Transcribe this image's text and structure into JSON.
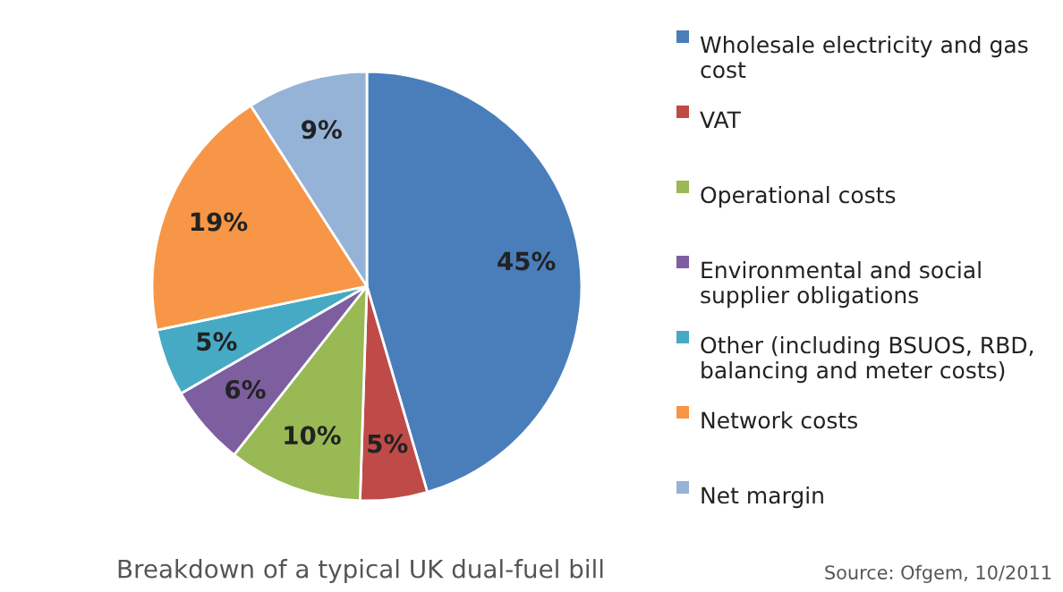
{
  "chart_data": {
    "type": "pie",
    "title": "Breakdown of a typical UK dual-fuel bill",
    "categories": [
      "Wholesale electricity and gas cost",
      "VAT",
      "Operational costs",
      "Environmental and social supplier obligations",
      "Other (including BSUOS, RBD, balancing and meter costs)",
      "Network costs",
      "Net margin"
    ],
    "values": [
      45,
      5,
      10,
      6,
      5,
      19,
      9
    ],
    "colors": [
      "#4a7ebb",
      "#be4b48",
      "#98b954",
      "#7d5fa0",
      "#46aac5",
      "#f79646",
      "#95b3d7"
    ],
    "value_labels": [
      "45%",
      "5%",
      "10%",
      "6%",
      "5%",
      "19%",
      "9%"
    ],
    "legend": "right",
    "annotations": [
      "Source: Ofgem, 10/2011"
    ]
  }
}
